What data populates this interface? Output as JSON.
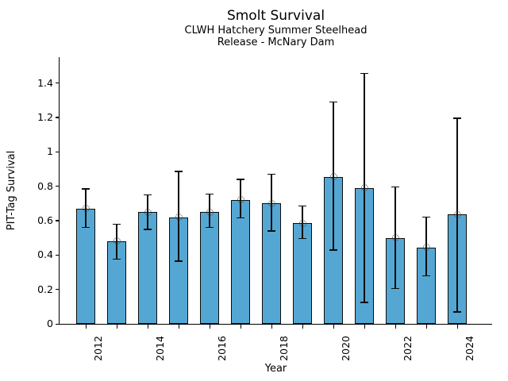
{
  "header": {
    "title": "Smolt Survival",
    "subtitle1": "CLWH Hatchery Summer Steelhead",
    "subtitle2": "Release - McNary Dam"
  },
  "chart_data": {
    "type": "bar",
    "title": "Smolt Survival",
    "subtitle1": "CLWH Hatchery Summer Steelhead",
    "subtitle2": "Release - McNary Dam",
    "xlabel": "Year",
    "ylabel": "PIT-Tag Survival",
    "categories": [
      "2012",
      "2013",
      "2014",
      "2015",
      "2016",
      "2017",
      "2018",
      "2019",
      "2020",
      "2021",
      "2022",
      "2023",
      "2024"
    ],
    "values": [
      0.67,
      0.48,
      0.65,
      0.62,
      0.65,
      0.72,
      0.7,
      0.585,
      0.855,
      0.79,
      0.5,
      0.445,
      0.635
    ],
    "error_low": [
      0.56,
      0.375,
      0.55,
      0.365,
      0.56,
      0.615,
      0.54,
      0.495,
      0.43,
      0.125,
      0.205,
      0.28,
      0.07
    ],
    "error_high": [
      0.785,
      0.58,
      0.75,
      0.885,
      0.755,
      0.84,
      0.87,
      0.685,
      1.29,
      1.455,
      0.795,
      0.62,
      1.195
    ],
    "yticks": [
      0,
      0.2,
      0.4,
      0.6,
      0.8,
      1,
      1.2,
      1.4
    ],
    "ytick_labels": [
      "0",
      "0.2",
      "0.4",
      "0.6",
      "0.8",
      "1",
      "1.2",
      "1.4"
    ],
    "xtick_labels": [
      "2012",
      "2014",
      "2016",
      "2018",
      "2020",
      "2022",
      "2024"
    ],
    "ylim": [
      0,
      1.55
    ],
    "grid": false,
    "legend": null,
    "marker": "open-circle",
    "bar_color": "#55a7d3",
    "bar_edge_color": "#0d0d0d",
    "error_color": "#0d0d0d"
  }
}
